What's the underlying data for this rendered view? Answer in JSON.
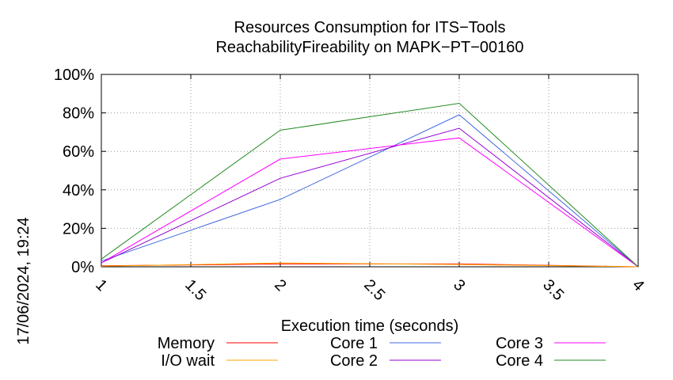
{
  "chart_data": {
    "type": "line",
    "title": "Resources Consumption for ITS−Tools",
    "subtitle": "ReachabilityFireability on MAPK−PT−00160",
    "xlabel": "Execution time (seconds)",
    "ylabel": "",
    "xlim": [
      1,
      4
    ],
    "ylim": [
      0,
      100
    ],
    "x_ticks": [
      "1",
      "1.5",
      "2",
      "2.5",
      "3",
      "3.5",
      "4"
    ],
    "y_ticks": [
      "0%",
      "20%",
      "40%",
      "60%",
      "80%",
      "100%"
    ],
    "grid": true,
    "legend_position": "bottom",
    "side_label": "17/06/2024, 19:24",
    "x": [
      1,
      2,
      3,
      4
    ],
    "series": [
      {
        "name": "Memory",
        "color": "#ff0000",
        "values": [
          0.5,
          1.5,
          1.5,
          0
        ]
      },
      {
        "name": "I/O wait",
        "color": "#ffa500",
        "values": [
          0.3,
          2.0,
          1.2,
          0
        ]
      },
      {
        "name": "Core 1",
        "color": "#4169e1",
        "values": [
          3,
          35,
          79,
          0
        ]
      },
      {
        "name": "Core 2",
        "color": "#9400d3",
        "values": [
          2,
          46,
          72,
          0
        ]
      },
      {
        "name": "Core 3",
        "color": "#ff00ff",
        "values": [
          2,
          56,
          67,
          0
        ]
      },
      {
        "name": "Core 4",
        "color": "#228b22",
        "values": [
          4,
          71,
          85,
          0
        ]
      }
    ]
  }
}
